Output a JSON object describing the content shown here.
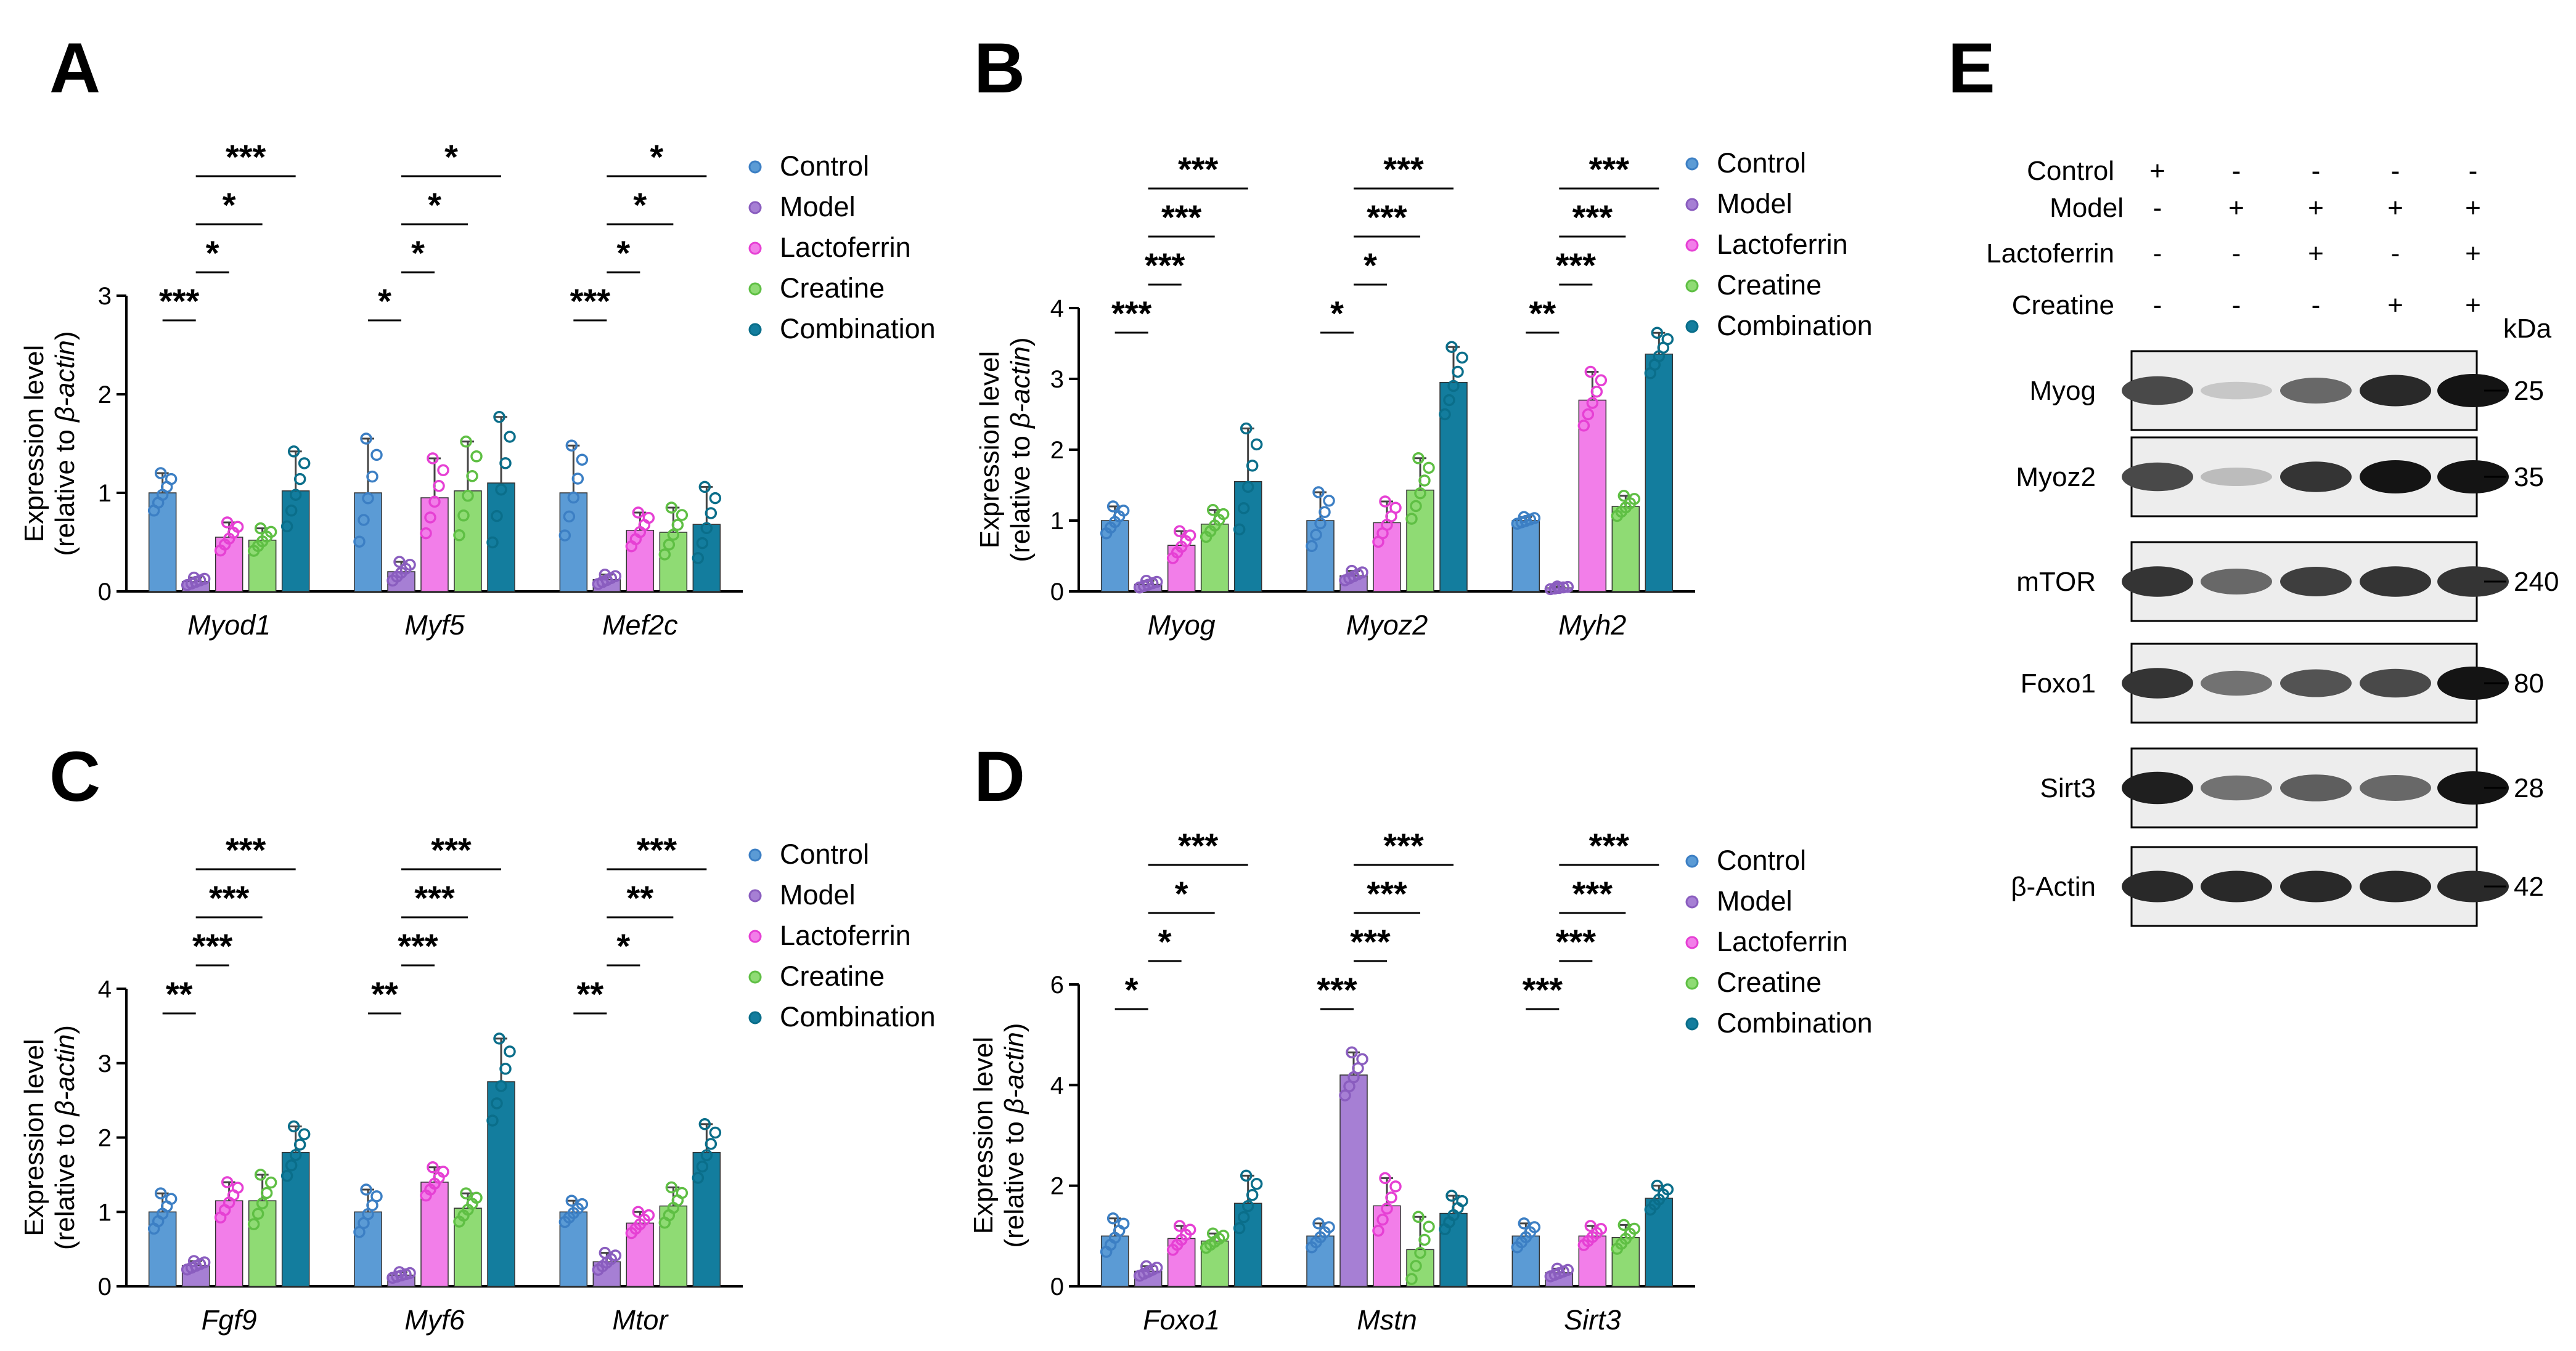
{
  "colors": {
    "Control": "#5b9bd5",
    "Model": "#a67fd4",
    "Lactoferrin": "#f27ee9",
    "Creatine": "#8fdb74",
    "Combination": "#137d9e",
    "ControlDot": "#3c7fc4",
    "ModelDot": "#8a5dbf",
    "LactoferrinDot": "#e640d4",
    "CreatineDot": "#5fbf44",
    "CombinationDot": "#0a6e8a"
  },
  "groups": [
    "Control",
    "Model",
    "Lactoferrin",
    "Creatine",
    "Combination"
  ],
  "ylabel": {
    "line1": "Expression level",
    "line2a": "(relative to ",
    "line2b": "β-actin",
    "line2c": ")"
  },
  "chart_data": [
    {
      "panel": "A",
      "type": "bar",
      "ylim": [
        0,
        3
      ],
      "yticks": [
        "0",
        "1",
        "2",
        "3"
      ],
      "categories": [
        "Myod1",
        "Myf5",
        "Mef2c"
      ],
      "series": [
        {
          "name": "Control",
          "values": [
            1.0,
            1.0,
            1.0
          ],
          "errors": [
            0.2,
            0.55,
            0.48
          ]
        },
        {
          "name": "Model",
          "values": [
            0.1,
            0.2,
            0.12
          ],
          "errors": [
            0.04,
            0.1,
            0.05
          ]
        },
        {
          "name": "Lactoferrin",
          "values": [
            0.55,
            0.95,
            0.62
          ],
          "errors": [
            0.15,
            0.4,
            0.18
          ]
        },
        {
          "name": "Creatine",
          "values": [
            0.52,
            1.02,
            0.6
          ],
          "errors": [
            0.12,
            0.5,
            0.25
          ]
        },
        {
          "name": "Combination",
          "values": [
            1.02,
            1.1,
            0.68
          ],
          "errors": [
            0.4,
            0.67,
            0.38
          ]
        }
      ],
      "significance": [
        {
          "cat": 0,
          "level": 0,
          "label": "***"
        },
        {
          "cat": 0,
          "level": 1,
          "label": "*"
        },
        {
          "cat": 0,
          "level": 2,
          "label": "*"
        },
        {
          "cat": 0,
          "level": 3,
          "label": "***"
        },
        {
          "cat": 1,
          "level": 0,
          "label": "*"
        },
        {
          "cat": 1,
          "level": 1,
          "label": "*"
        },
        {
          "cat": 1,
          "level": 2,
          "label": "*"
        },
        {
          "cat": 1,
          "level": 3,
          "label": "*"
        },
        {
          "cat": 2,
          "level": 0,
          "label": "***"
        },
        {
          "cat": 2,
          "level": 1,
          "label": "*"
        },
        {
          "cat": 2,
          "level": 2,
          "label": "*"
        },
        {
          "cat": 2,
          "level": 3,
          "label": "*"
        }
      ]
    },
    {
      "panel": "B",
      "type": "bar",
      "ylim": [
        0,
        4
      ],
      "yticks": [
        "0",
        "1",
        "2",
        "3",
        "4"
      ],
      "categories": [
        "Myog",
        "Myoz2",
        "Myh2"
      ],
      "series": [
        {
          "name": "Control",
          "values": [
            1.0,
            1.0,
            1.0
          ],
          "errors": [
            0.2,
            0.4,
            0.05
          ]
        },
        {
          "name": "Model",
          "values": [
            0.1,
            0.22,
            0.05
          ],
          "errors": [
            0.05,
            0.07,
            0.02
          ]
        },
        {
          "name": "Lactoferrin",
          "values": [
            0.65,
            0.97,
            2.7
          ],
          "errors": [
            0.2,
            0.3,
            0.4
          ]
        },
        {
          "name": "Creatine",
          "values": [
            0.95,
            1.43,
            1.2
          ],
          "errors": [
            0.2,
            0.45,
            0.15
          ]
        },
        {
          "name": "Combination",
          "values": [
            1.55,
            2.95,
            3.35
          ],
          "errors": [
            0.75,
            0.5,
            0.3
          ]
        }
      ],
      "significance": [
        {
          "cat": 0,
          "level": 0,
          "label": "***"
        },
        {
          "cat": 0,
          "level": 1,
          "label": "***"
        },
        {
          "cat": 0,
          "level": 2,
          "label": "***"
        },
        {
          "cat": 0,
          "level": 3,
          "label": "***"
        },
        {
          "cat": 1,
          "level": 0,
          "label": "*"
        },
        {
          "cat": 1,
          "level": 1,
          "label": "*"
        },
        {
          "cat": 1,
          "level": 2,
          "label": "***"
        },
        {
          "cat": 1,
          "level": 3,
          "label": "***"
        },
        {
          "cat": 2,
          "level": 0,
          "label": "**"
        },
        {
          "cat": 2,
          "level": 1,
          "label": "***"
        },
        {
          "cat": 2,
          "level": 2,
          "label": "***"
        },
        {
          "cat": 2,
          "level": 3,
          "label": "***"
        }
      ]
    },
    {
      "panel": "C",
      "type": "bar",
      "ylim": [
        0,
        4
      ],
      "yticks": [
        "0",
        "1",
        "2",
        "3",
        "4"
      ],
      "categories": [
        "Fgf9",
        "Myf6",
        "Mtor"
      ],
      "series": [
        {
          "name": "Control",
          "values": [
            1.0,
            1.0,
            1.0
          ],
          "errors": [
            0.25,
            0.3,
            0.15
          ]
        },
        {
          "name": "Model",
          "values": [
            0.28,
            0.15,
            0.33
          ],
          "errors": [
            0.06,
            0.04,
            0.12
          ]
        },
        {
          "name": "Lactoferrin",
          "values": [
            1.15,
            1.4,
            0.85
          ],
          "errors": [
            0.25,
            0.2,
            0.15
          ]
        },
        {
          "name": "Creatine",
          "values": [
            1.15,
            1.05,
            1.08
          ],
          "errors": [
            0.35,
            0.2,
            0.25
          ]
        },
        {
          "name": "Combination",
          "values": [
            1.8,
            2.75,
            1.8
          ],
          "errors": [
            0.35,
            0.58,
            0.38
          ]
        }
      ],
      "significance": [
        {
          "cat": 0,
          "level": 0,
          "label": "**"
        },
        {
          "cat": 0,
          "level": 1,
          "label": "***"
        },
        {
          "cat": 0,
          "level": 2,
          "label": "***"
        },
        {
          "cat": 0,
          "level": 3,
          "label": "***"
        },
        {
          "cat": 1,
          "level": 0,
          "label": "**"
        },
        {
          "cat": 1,
          "level": 1,
          "label": "***"
        },
        {
          "cat": 1,
          "level": 2,
          "label": "***"
        },
        {
          "cat": 1,
          "level": 3,
          "label": "***"
        },
        {
          "cat": 2,
          "level": 0,
          "label": "**"
        },
        {
          "cat": 2,
          "level": 1,
          "label": "*"
        },
        {
          "cat": 2,
          "level": 2,
          "label": "**"
        },
        {
          "cat": 2,
          "level": 3,
          "label": "***"
        }
      ]
    },
    {
      "panel": "D",
      "type": "bar",
      "ylim": [
        0,
        6
      ],
      "yticks": [
        "0",
        "2",
        "4",
        "6"
      ],
      "categories": [
        "Foxo1",
        "Mstn",
        "Sirt3"
      ],
      "series": [
        {
          "name": "Control",
          "values": [
            1.0,
            1.0,
            1.0
          ],
          "errors": [
            0.35,
            0.25,
            0.25
          ]
        },
        {
          "name": "Model",
          "values": [
            0.3,
            4.2,
            0.27
          ],
          "errors": [
            0.1,
            0.45,
            0.08
          ]
        },
        {
          "name": "Lactoferrin",
          "values": [
            0.95,
            1.6,
            1.0
          ],
          "errors": [
            0.25,
            0.55,
            0.2
          ]
        },
        {
          "name": "Creatine",
          "values": [
            0.9,
            0.73,
            0.97
          ],
          "errors": [
            0.15,
            0.65,
            0.25
          ]
        },
        {
          "name": "Combination",
          "values": [
            1.65,
            1.45,
            1.75
          ],
          "errors": [
            0.55,
            0.35,
            0.25
          ]
        }
      ],
      "significance": [
        {
          "cat": 0,
          "level": 0,
          "label": "*"
        },
        {
          "cat": 0,
          "level": 1,
          "label": "*"
        },
        {
          "cat": 0,
          "level": 2,
          "label": "*"
        },
        {
          "cat": 0,
          "level": 3,
          "label": "***"
        },
        {
          "cat": 1,
          "level": 0,
          "label": "***"
        },
        {
          "cat": 1,
          "level": 1,
          "label": "***"
        },
        {
          "cat": 1,
          "level": 2,
          "label": "***"
        },
        {
          "cat": 1,
          "level": 3,
          "label": "***"
        },
        {
          "cat": 2,
          "level": 0,
          "label": "***"
        },
        {
          "cat": 2,
          "level": 1,
          "label": "***"
        },
        {
          "cat": 2,
          "level": 2,
          "label": "***"
        },
        {
          "cat": 2,
          "level": 3,
          "label": "***"
        }
      ]
    }
  ],
  "western": {
    "panel": "E",
    "conditions": [
      {
        "name": "Control",
        "signs": [
          "+",
          "-",
          "-",
          "-",
          "-"
        ]
      },
      {
        "name": "Model",
        "signs": [
          "-",
          "+",
          "+",
          "+",
          "+"
        ]
      },
      {
        "name": "Lactoferrin",
        "signs": [
          "-",
          "-",
          "+",
          "-",
          "+"
        ]
      },
      {
        "name": "Creatine",
        "signs": [
          "-",
          "-",
          "-",
          "+",
          "+"
        ]
      }
    ],
    "kda_label": "kDa",
    "blots": [
      {
        "protein": "Myog",
        "kda": "25",
        "intensities": [
          0.75,
          0.15,
          0.6,
          0.9,
          1.0
        ]
      },
      {
        "protein": "Myoz2",
        "kda": "35",
        "intensities": [
          0.75,
          0.2,
          0.85,
          1.0,
          1.0
        ]
      },
      {
        "protein": "mTOR",
        "kda": "240",
        "intensities": [
          0.85,
          0.6,
          0.8,
          0.85,
          0.85
        ]
      },
      {
        "protein": "Foxo1",
        "kda": "80",
        "intensities": [
          0.85,
          0.55,
          0.7,
          0.75,
          1.0
        ]
      },
      {
        "protein": "Sirt3",
        "kda": "28",
        "intensities": [
          0.95,
          0.55,
          0.65,
          0.6,
          1.0
        ]
      },
      {
        "protein": "β-Actin",
        "kda": "42",
        "intensities": [
          0.9,
          0.9,
          0.9,
          0.9,
          0.9
        ]
      }
    ]
  }
}
